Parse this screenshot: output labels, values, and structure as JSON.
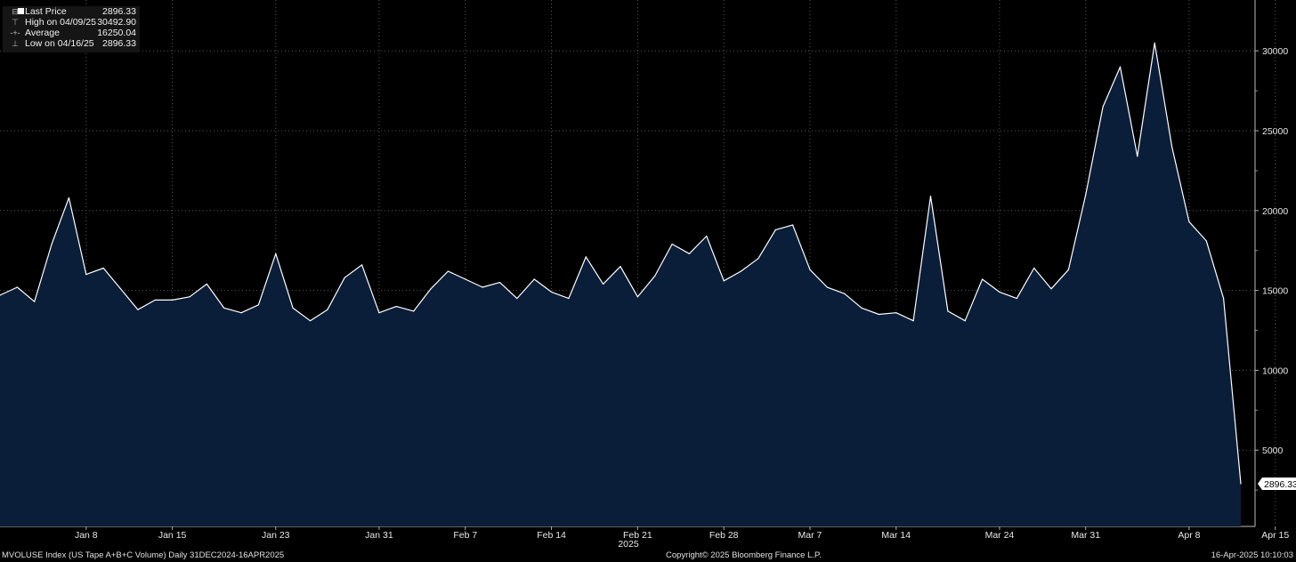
{
  "legend": {
    "last_label": "Last Price",
    "last_value": "2896.33",
    "high_label": "High on 04/09/25",
    "high_value": "30492.90",
    "avg_label": "Average",
    "avg_value": "16250.04",
    "low_label": "Low on 04/16/25",
    "low_value": "2896.33"
  },
  "footer": {
    "left": "MVOLUSE Index (US Tape A+B+C Volume)  Daily 31DEC2024-16APR2025",
    "center": "Copyright© 2025 Bloomberg Finance L.P.",
    "right": "16-Apr-2025 10:10:03"
  },
  "colors": {
    "background": "#000000",
    "area_fill": "#0a1e3a",
    "line": "#ffffff",
    "grid": "#5a5a5a",
    "text": "#e8e8e8"
  },
  "chart_data": {
    "type": "area",
    "title": "",
    "xlabel": "2025",
    "ylabel": "",
    "ylim": [
      0,
      31500
    ],
    "y_ticks": [
      5000,
      10000,
      15000,
      20000,
      25000,
      30000
    ],
    "y_tick_labels": [
      "5000",
      "10000",
      "15000",
      "20000",
      "25000",
      "30000"
    ],
    "x_tick_labels": [
      "Jan 8",
      "Jan 15",
      "Jan 23",
      "Jan 31",
      "Feb 7",
      "Feb 14",
      "Feb 21",
      "Feb 28",
      "Mar 7",
      "Mar 14",
      "Mar 24",
      "Mar 31",
      "Apr 8",
      "Apr 15"
    ],
    "x_tick_index": [
      5,
      10,
      16,
      22,
      27,
      32,
      37,
      42,
      47,
      52,
      58,
      63,
      69,
      74
    ],
    "x_axis_year": "2025",
    "grid": true,
    "last_value_label": "2896.33",
    "series": [
      {
        "dates": [
          "2024-12-31",
          "2025-01-02",
          "2025-01-03",
          "2025-01-06",
          "2025-01-07",
          "2025-01-08",
          "2025-01-10",
          "2025-01-13",
          "2025-01-14",
          "2025-01-15",
          "2025-01-16",
          "2025-01-17",
          "2025-01-21",
          "2025-01-22",
          "2025-01-23",
          "2025-01-24",
          "2025-01-27",
          "2025-01-28",
          "2025-01-29",
          "2025-01-30",
          "2025-01-31",
          "2025-02-03",
          "2025-02-04",
          "2025-02-05",
          "2025-02-06",
          "2025-02-07",
          "2025-02-10",
          "2025-02-11",
          "2025-02-12",
          "2025-02-13",
          "2025-02-14",
          "2025-02-18",
          "2025-02-19",
          "2025-02-20",
          "2025-02-21",
          "2025-02-24",
          "2025-02-25",
          "2025-02-26",
          "2025-02-27",
          "2025-02-28",
          "2025-03-03",
          "2025-03-04",
          "2025-03-05",
          "2025-03-06",
          "2025-03-07",
          "2025-03-10",
          "2025-03-11",
          "2025-03-12",
          "2025-03-13",
          "2025-03-14",
          "2025-03-17",
          "2025-03-18",
          "2025-03-19",
          "2025-03-20",
          "2025-03-21",
          "2025-03-24",
          "2025-03-25",
          "2025-03-26",
          "2025-03-27",
          "2025-03-28",
          "2025-03-31",
          "2025-04-01",
          "2025-04-02",
          "2025-04-03",
          "2025-04-04",
          "2025-04-07",
          "2025-04-08",
          "2025-04-09",
          "2025-04-10",
          "2025-04-11",
          "2025-04-14",
          "2025-04-15",
          "2025-04-16"
        ],
        "values": [
          14700,
          15200,
          14300,
          17900,
          20800,
          16000,
          16400,
          15100,
          13800,
          14400,
          14400,
          14600,
          15400,
          13900,
          13600,
          14100,
          17300,
          13900,
          13100,
          13800,
          15800,
          16600,
          13600,
          14000,
          13700,
          15100,
          16200,
          15700,
          15200,
          15500,
          14500,
          15700,
          14900,
          14500,
          17100,
          15400,
          16500,
          14600,
          15900,
          17900,
          17300,
          18400,
          15600,
          16200,
          17000,
          18800,
          19100,
          16300,
          15200,
          14800,
          13900,
          13500,
          13600,
          13100,
          20900,
          13700,
          13100,
          15700,
          14900,
          14500,
          16400,
          15100,
          16300,
          21000,
          26500,
          29000,
          23400,
          30492.9,
          24000,
          19300,
          18100,
          14500,
          2896.33
        ]
      }
    ]
  }
}
